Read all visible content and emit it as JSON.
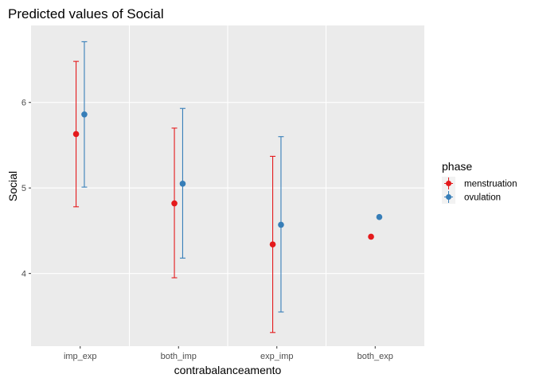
{
  "chart_data": {
    "type": "scatter",
    "title": "Predicted values of Social",
    "xlabel": "contrabalanceamento",
    "ylabel": "Social",
    "categories": [
      "imp_exp",
      "both_imp",
      "exp_imp",
      "both_exp"
    ],
    "ylim": [
      3.15,
      6.9
    ],
    "yticks": [
      "4",
      "5",
      "6"
    ],
    "ytick_values": [
      4,
      5,
      6
    ],
    "grid": true,
    "legend": {
      "title": "phase",
      "position": "right"
    },
    "series": [
      {
        "name": "menstruation",
        "color": "#e41a1c",
        "values": [
          5.63,
          4.82,
          4.34,
          4.43
        ],
        "lower": [
          4.78,
          3.95,
          3.31,
          null
        ],
        "upper": [
          6.48,
          5.7,
          5.37,
          null
        ]
      },
      {
        "name": "ovulation",
        "color": "#377eb8",
        "values": [
          5.86,
          5.05,
          4.57,
          4.66
        ],
        "lower": [
          5.01,
          4.18,
          3.55,
          null
        ],
        "upper": [
          6.71,
          5.93,
          5.6,
          null
        ]
      }
    ]
  }
}
